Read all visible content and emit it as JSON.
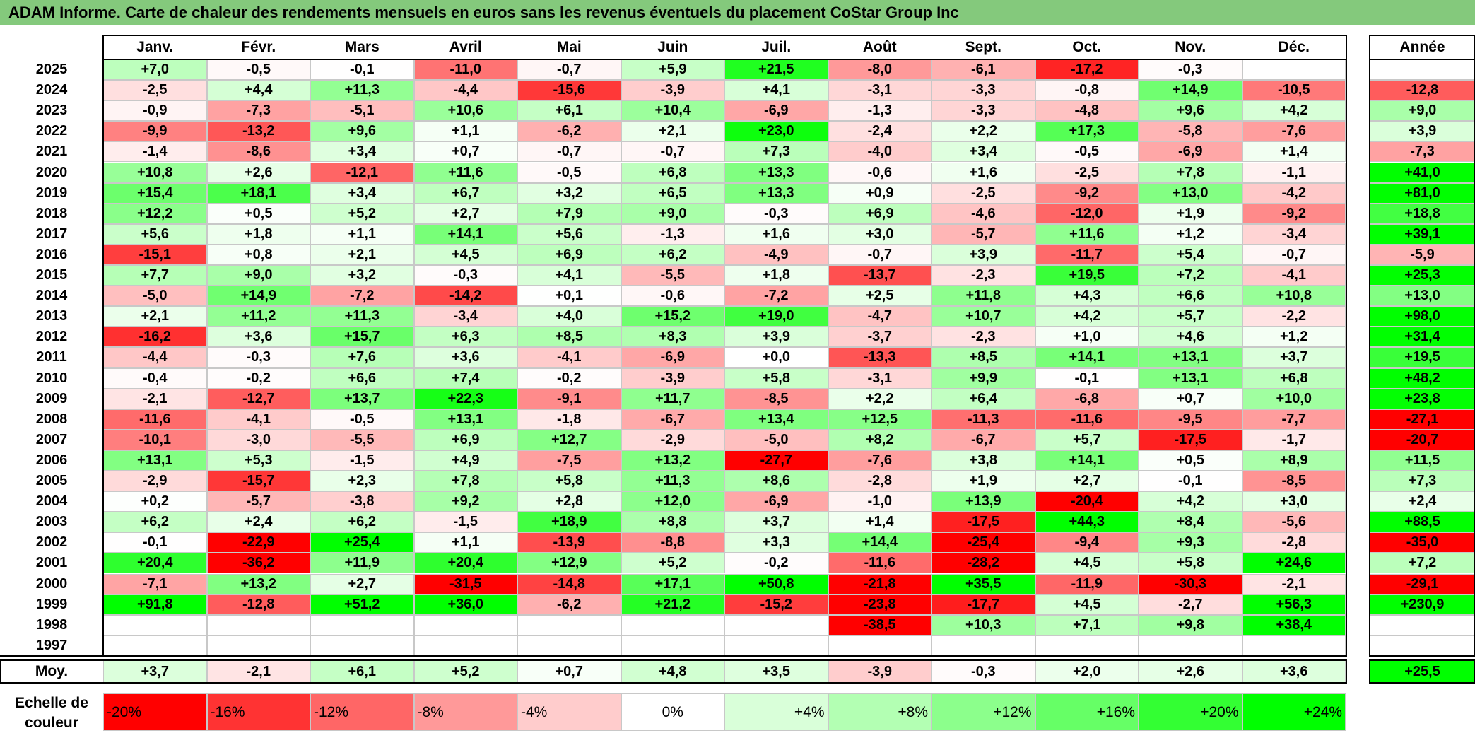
{
  "title": "ADAM Informe. Carte de chaleur des rendements mensuels en euros sans les revenus éventuels du placement CoStar Group Inc",
  "chart_data": {
    "type": "heatmap",
    "title": "ADAM Informe. Carte de chaleur des rendements mensuels en euros sans les revenus éventuels du placement CoStar Group Inc",
    "columns": [
      "Janv.",
      "Févr.",
      "Mars",
      "Avril",
      "Mai",
      "Juin",
      "Juil.",
      "Août",
      "Sept.",
      "Oct.",
      "Nov.",
      "Déc."
    ],
    "annual_header": "Année",
    "rows": [
      {
        "year": "2025",
        "values": [
          "+7,0",
          "-0,5",
          "-0,1",
          "-11,0",
          "-0,7",
          "+5,9",
          "+21,5",
          "-8,0",
          "-6,1",
          "-17,2",
          "-0,3",
          ""
        ],
        "annual": ""
      },
      {
        "year": "2024",
        "values": [
          "-2,5",
          "+4,4",
          "+11,3",
          "-4,4",
          "-15,6",
          "-3,9",
          "+4,1",
          "-3,1",
          "-3,3",
          "-0,8",
          "+14,9",
          "-10,5"
        ],
        "annual": "-12,8"
      },
      {
        "year": "2023",
        "values": [
          "-0,9",
          "-7,3",
          "-5,1",
          "+10,6",
          "+6,1",
          "+10,4",
          "-6,9",
          "-1,3",
          "-3,3",
          "-4,8",
          "+9,6",
          "+4,2"
        ],
        "annual": "+9,0"
      },
      {
        "year": "2022",
        "values": [
          "-9,9",
          "-13,2",
          "+9,6",
          "+1,1",
          "-6,2",
          "+2,1",
          "+23,0",
          "-2,4",
          "+2,2",
          "+17,3",
          "-5,8",
          "-7,6"
        ],
        "annual": "+3,9"
      },
      {
        "year": "2021",
        "values": [
          "-1,4",
          "-8,6",
          "+3,4",
          "+0,7",
          "-0,7",
          "-0,7",
          "+7,3",
          "-4,0",
          "+3,4",
          "-0,5",
          "-6,9",
          "+1,4"
        ],
        "annual": "-7,3"
      },
      {
        "year": "2020",
        "values": [
          "+10,8",
          "+2,6",
          "-12,1",
          "+11,6",
          "-0,5",
          "+6,8",
          "+13,3",
          "-0,6",
          "+1,6",
          "-2,5",
          "+7,8",
          "-1,1"
        ],
        "annual": "+41,0"
      },
      {
        "year": "2019",
        "values": [
          "+15,4",
          "+18,1",
          "+3,4",
          "+6,7",
          "+3,2",
          "+6,5",
          "+13,3",
          "+0,9",
          "-2,5",
          "-9,2",
          "+13,0",
          "-4,2"
        ],
        "annual": "+81,0"
      },
      {
        "year": "2018",
        "values": [
          "+12,2",
          "+0,5",
          "+5,2",
          "+2,7",
          "+7,9",
          "+9,0",
          "-0,3",
          "+6,9",
          "-4,6",
          "-12,0",
          "+1,9",
          "-9,2"
        ],
        "annual": "+18,8"
      },
      {
        "year": "2017",
        "values": [
          "+5,6",
          "+1,8",
          "+1,1",
          "+14,1",
          "+5,6",
          "-1,3",
          "+1,6",
          "+3,0",
          "-5,7",
          "+11,6",
          "+1,2",
          "-3,4"
        ],
        "annual": "+39,1"
      },
      {
        "year": "2016",
        "values": [
          "-15,1",
          "+0,8",
          "+2,1",
          "+4,5",
          "+6,9",
          "+6,2",
          "-4,9",
          "-0,7",
          "+3,9",
          "-11,7",
          "+5,4",
          "-0,7"
        ],
        "annual": "-5,9"
      },
      {
        "year": "2015",
        "values": [
          "+7,7",
          "+9,0",
          "+3,2",
          "-0,3",
          "+4,1",
          "-5,5",
          "+1,8",
          "-13,7",
          "-2,3",
          "+19,5",
          "+7,2",
          "-4,1"
        ],
        "annual": "+25,3"
      },
      {
        "year": "2014",
        "values": [
          "-5,0",
          "+14,9",
          "-7,2",
          "-14,2",
          "+0,1",
          "-0,6",
          "-7,2",
          "+2,5",
          "+11,8",
          "+4,3",
          "+6,6",
          "+10,8"
        ],
        "annual": "+13,0"
      },
      {
        "year": "2013",
        "values": [
          "+2,1",
          "+11,2",
          "+11,3",
          "-3,4",
          "+4,0",
          "+15,2",
          "+19,0",
          "-4,7",
          "+10,7",
          "+4,2",
          "+5,7",
          "-2,2"
        ],
        "annual": "+98,0"
      },
      {
        "year": "2012",
        "values": [
          "-16,2",
          "+3,6",
          "+15,7",
          "+6,3",
          "+8,5",
          "+8,3",
          "+3,9",
          "-3,7",
          "-2,3",
          "+1,0",
          "+4,6",
          "+1,2"
        ],
        "annual": "+31,4"
      },
      {
        "year": "2011",
        "values": [
          "-4,4",
          "-0,3",
          "+7,6",
          "+3,6",
          "-4,1",
          "-6,9",
          "+0,0",
          "-13,3",
          "+8,5",
          "+14,1",
          "+13,1",
          "+3,7"
        ],
        "annual": "+19,5"
      },
      {
        "year": "2010",
        "values": [
          "-0,4",
          "-0,2",
          "+6,6",
          "+7,4",
          "-0,2",
          "-3,9",
          "+5,8",
          "-3,1",
          "+9,9",
          "-0,1",
          "+13,1",
          "+6,8"
        ],
        "annual": "+48,2"
      },
      {
        "year": "2009",
        "values": [
          "-2,1",
          "-12,7",
          "+13,7",
          "+22,3",
          "-9,1",
          "+11,7",
          "-8,5",
          "+2,2",
          "+6,4",
          "-6,8",
          "+0,7",
          "+10,0"
        ],
        "annual": "+23,8"
      },
      {
        "year": "2008",
        "values": [
          "-11,6",
          "-4,1",
          "-0,5",
          "+13,1",
          "-1,8",
          "-6,7",
          "+13,4",
          "+12,5",
          "-11,3",
          "-11,6",
          "-9,5",
          "-7,7"
        ],
        "annual": "-27,1"
      },
      {
        "year": "2007",
        "values": [
          "-10,1",
          "-3,0",
          "-5,5",
          "+6,9",
          "+12,7",
          "-2,9",
          "-5,0",
          "+8,2",
          "-6,7",
          "+5,7",
          "-17,5",
          "-1,7"
        ],
        "annual": "-20,7"
      },
      {
        "year": "2006",
        "values": [
          "+13,1",
          "+5,3",
          "-1,5",
          "+4,9",
          "-7,5",
          "+13,2",
          "-27,7",
          "-7,6",
          "+3,8",
          "+14,1",
          "+0,5",
          "+8,9"
        ],
        "annual": "+11,5"
      },
      {
        "year": "2005",
        "values": [
          "-2,9",
          "-15,7",
          "+2,3",
          "+7,8",
          "+5,8",
          "+11,3",
          "+8,6",
          "-2,8",
          "+1,9",
          "+2,7",
          "-0,1",
          "-8,5"
        ],
        "annual": "+7,3"
      },
      {
        "year": "2004",
        "values": [
          "+0,2",
          "-5,7",
          "-3,8",
          "+9,2",
          "+2,8",
          "+12,0",
          "-6,9",
          "-1,0",
          "+13,9",
          "-20,4",
          "+4,2",
          "+3,0"
        ],
        "annual": "+2,4"
      },
      {
        "year": "2003",
        "values": [
          "+6,2",
          "+2,4",
          "+6,2",
          "-1,5",
          "+18,9",
          "+8,8",
          "+3,7",
          "+1,4",
          "-17,5",
          "+44,3",
          "+8,4",
          "-5,6"
        ],
        "annual": "+88,5"
      },
      {
        "year": "2002",
        "values": [
          "-0,1",
          "-22,9",
          "+25,4",
          "+1,1",
          "-13,9",
          "-8,8",
          "+3,3",
          "+14,4",
          "-25,4",
          "-9,4",
          "+9,3",
          "-2,8"
        ],
        "annual": "-35,0"
      },
      {
        "year": "2001",
        "values": [
          "+20,4",
          "-36,2",
          "+11,9",
          "+20,4",
          "+12,9",
          "+5,2",
          "-0,2",
          "-11,6",
          "-28,2",
          "+4,5",
          "+5,8",
          "+24,6"
        ],
        "annual": "+7,2"
      },
      {
        "year": "2000",
        "values": [
          "-7,1",
          "+13,2",
          "+2,7",
          "-31,5",
          "-14,8",
          "+17,1",
          "+50,8",
          "-21,8",
          "+35,5",
          "-11,9",
          "-30,3",
          "-2,1"
        ],
        "annual": "-29,1"
      },
      {
        "year": "1999",
        "values": [
          "+91,8",
          "-12,8",
          "+51,2",
          "+36,0",
          "-6,2",
          "+21,2",
          "-15,2",
          "-23,8",
          "-17,7",
          "+4,5",
          "-2,7",
          "+56,3"
        ],
        "annual": "+230,9"
      },
      {
        "year": "1998",
        "values": [
          "",
          "",
          "",
          "",
          "",
          "",
          "",
          "-38,5",
          "+10,3",
          "+7,1",
          "+9,8",
          "+38,4"
        ],
        "annual": ""
      },
      {
        "year": "1997",
        "values": [
          "",
          "",
          "",
          "",
          "",
          "",
          "",
          "",
          "",
          "",
          "",
          ""
        ],
        "annual": ""
      }
    ],
    "average": {
      "label": "Moy.",
      "values": [
        "+3,7",
        "-2,1",
        "+6,1",
        "+5,2",
        "+0,7",
        "+4,8",
        "+3,5",
        "-3,9",
        "-0,3",
        "+2,0",
        "+2,6",
        "+3,6"
      ],
      "annual": "+25,5"
    },
    "color_scale": {
      "label_line1": "Echelle de",
      "label_line2": "couleur",
      "stops": [
        {
          "label": "-20%",
          "value": -20,
          "color": "#ff0000"
        },
        {
          "label": "-16%",
          "value": -16,
          "color": "#ff3333"
        },
        {
          "label": "-12%",
          "value": -12,
          "color": "#ff6666"
        },
        {
          "label": "-8%",
          "value": -8,
          "color": "#ff9999"
        },
        {
          "label": "-4%",
          "value": -4,
          "color": "#ffcccc"
        },
        {
          "label": "0%",
          "value": 0,
          "color": "#ffffff"
        },
        {
          "label": "+4%",
          "value": 4,
          "color": "#d9ffd9"
        },
        {
          "label": "+8%",
          "value": 8,
          "color": "#b3ffb3"
        },
        {
          "label": "+12%",
          "value": 12,
          "color": "#8cff8c"
        },
        {
          "label": "+16%",
          "value": 16,
          "color": "#66ff66"
        },
        {
          "label": "+20%",
          "value": 20,
          "color": "#33ff33"
        },
        {
          "label": "+24%",
          "value": 24,
          "color": "#00ff00"
        }
      ]
    }
  }
}
